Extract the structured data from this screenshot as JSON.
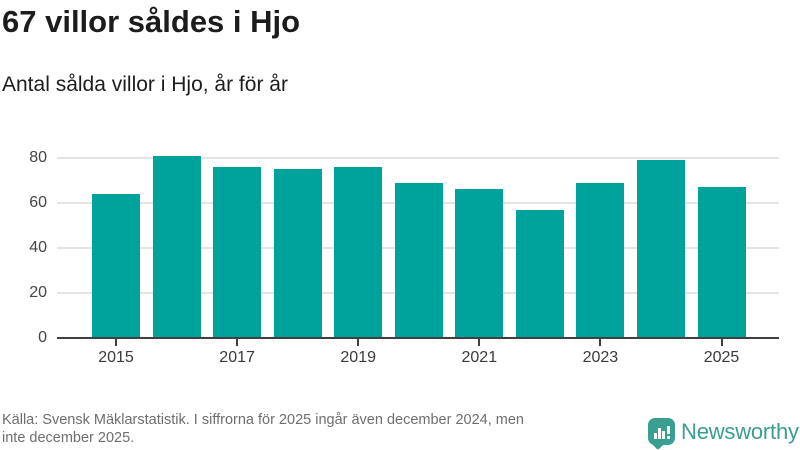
{
  "header": {
    "title": "67 villor såldes i Hjo",
    "subtitle": "Antal sålda villor i Hjo, år för år"
  },
  "chart_data": {
    "type": "bar",
    "title": "67 villor såldes i Hjo",
    "subtitle": "Antal sålda villor i Hjo, år för år",
    "categories": [
      "2015",
      "2016",
      "2017",
      "2018",
      "2019",
      "2020",
      "2021",
      "2022",
      "2023",
      "2024",
      "2025"
    ],
    "values": [
      64,
      81,
      76,
      75,
      76,
      69,
      66,
      57,
      69,
      79,
      67
    ],
    "x_tick_labels": [
      "2015",
      "2017",
      "2019",
      "2021",
      "2023",
      "2025"
    ],
    "y_ticks": [
      0,
      20,
      40,
      60,
      80
    ],
    "ylim": [
      0,
      84
    ],
    "xlabel": "",
    "ylabel": "",
    "grid": true,
    "legend": false,
    "bar_color": "#00a39b",
    "axis_color": "#404040",
    "gridline_color": "#e4e4e4"
  },
  "footer": {
    "source_lines": [
      "Källa: Svensk Mäklarstatistik. I siffrorna för 2025 ingår även december 2024, men",
      "inte december 2025."
    ],
    "brand": {
      "name": "Newsworthy",
      "color": "#3a9f90",
      "icon": "bar-chart-speech-bubble"
    }
  }
}
